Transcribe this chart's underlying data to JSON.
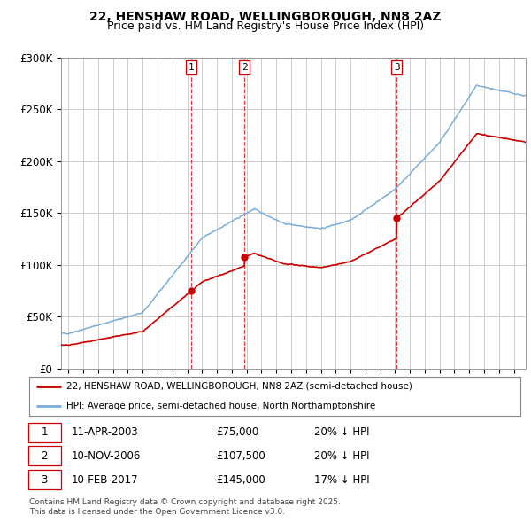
{
  "title": "22, HENSHAW ROAD, WELLINGBOROUGH, NN8 2AZ",
  "subtitle": "Price paid vs. HM Land Registry's House Price Index (HPI)",
  "ylim": [
    0,
    300000
  ],
  "yticks": [
    0,
    50000,
    100000,
    150000,
    200000,
    250000,
    300000
  ],
  "ytick_labels": [
    "£0",
    "£50K",
    "£100K",
    "£150K",
    "£200K",
    "£250K",
    "£300K"
  ],
  "sale_dates_label": [
    "11-APR-2003",
    "10-NOV-2006",
    "10-FEB-2017"
  ],
  "sale_prices": [
    75000,
    107500,
    145000
  ],
  "sale_years": [
    2003.27,
    2006.86,
    2017.11
  ],
  "line_color_red": "#cc0000",
  "line_color_blue": "#7aaddb",
  "vline_color": "#cc0000",
  "background_color": "#ffffff",
  "grid_color": "#cccccc",
  "legend_label_red": "22, HENSHAW ROAD, WELLINGBOROUGH, NN8 2AZ (semi-detached house)",
  "legend_label_blue": "HPI: Average price, semi-detached house, North Northamptonshire",
  "footnote": "Contains HM Land Registry data © Crown copyright and database right 2025.\nThis data is licensed under the Open Government Licence v3.0.",
  "xmin": 1994.5,
  "xmax": 2025.8,
  "sale_info": [
    [
      "1",
      "11-APR-2003",
      "£75,000",
      "20% ↓ HPI"
    ],
    [
      "2",
      "10-NOV-2006",
      "£107,500",
      "20% ↓ HPI"
    ],
    [
      "3",
      "10-FEB-2017",
      "£145,000",
      "17% ↓ HPI"
    ]
  ]
}
